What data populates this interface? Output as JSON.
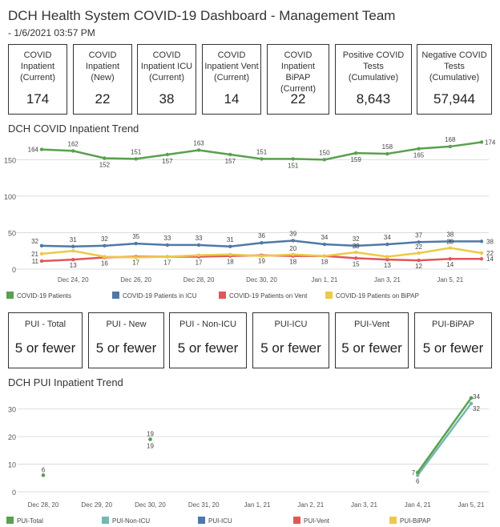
{
  "header": {
    "title": "DCH Health System COVID-19 Dashboard - Management Team",
    "subtitle": "- 1/6/2021 03:57 PM"
  },
  "kpis": [
    {
      "label": "COVID\nInpatient\n(Current)",
      "value": "174"
    },
    {
      "label": "COVID\nInpatient\n(New)",
      "value": "22"
    },
    {
      "label": "COVID\nInpatient ICU\n(Current)",
      "value": "38"
    },
    {
      "label": "COVID\nInpatient Vent\n(Current)",
      "value": "14"
    },
    {
      "label": "COVID\nInpatient BiPAP\n(Current)",
      "value": "22"
    },
    {
      "label": "Positive COVID\nTests\n(Cumulative)",
      "value": "8,643"
    },
    {
      "label": "Negative COVID\nTests\n(Cumulative)",
      "value": "57,944"
    }
  ],
  "pui_cards": [
    {
      "label": "PUI - Total",
      "value": "5 or fewer"
    },
    {
      "label": "PUI - New",
      "value": "5 or fewer"
    },
    {
      "label": "PUI - Non-ICU",
      "value": "5 or fewer"
    },
    {
      "label": "PUI-ICU",
      "value": "5 or fewer"
    },
    {
      "label": "PUI-Vent",
      "value": "5 or fewer"
    },
    {
      "label": "PUI-BiPAP",
      "value": "5 or fewer"
    }
  ],
  "colors": {
    "green": "#59a14f",
    "blue": "#4e79a7",
    "red": "#e15759",
    "yellow": "#edc948",
    "teal": "#76b7b2",
    "grid": "#dddddd",
    "axis_text": "#555555"
  },
  "chart_data": [
    {
      "type": "line",
      "title": "DCH COVID Inpatient Trend",
      "x": [
        "Dec 23",
        "Dec 24",
        "Dec 25",
        "Dec 26",
        "Dec 27",
        "Dec 28",
        "Dec 29",
        "Dec 30",
        "Dec 31",
        "Jan 1",
        "Jan 2",
        "Jan 3",
        "Jan 4",
        "Jan 5",
        "Jan 6"
      ],
      "x_tick_labels": [
        "Dec 24, 20",
        "Dec 26, 20",
        "Dec 28, 20",
        "Dec 30, 20",
        "Jan 1, 21",
        "Jan 3, 21",
        "Jan 5, 21"
      ],
      "y_ticks": [
        0,
        50,
        100,
        150
      ],
      "ylim": [
        0,
        180
      ],
      "grid": true,
      "legend_position": "bottom",
      "series": [
        {
          "name": "COVID-19 Patients",
          "color": "#59a14f",
          "values": [
            164,
            162,
            152,
            151,
            157,
            163,
            157,
            151,
            151,
            150,
            159,
            158,
            165,
            168,
            174
          ]
        },
        {
          "name": "COVID-19 Patients in ICU",
          "color": "#4e79a7",
          "values": [
            32,
            31,
            32,
            35,
            33,
            33,
            31,
            36,
            39,
            34,
            32,
            34,
            37,
            38,
            38
          ]
        },
        {
          "name": "COVID-19 Patients on Vent",
          "color": "#e15759",
          "values": [
            11,
            13,
            16,
            17,
            17,
            17,
            18,
            19,
            18,
            18,
            15,
            13,
            12,
            14,
            14
          ]
        },
        {
          "name": "COVID-19 Patients on BiPAP",
          "color": "#edc948",
          "values": [
            21,
            25,
            17,
            16,
            17,
            19,
            20,
            18,
            20,
            18,
            23,
            17,
            22,
            29,
            22
          ]
        }
      ],
      "data_labels": [
        {
          "series": 0,
          "text": [
            "164",
            "162",
            "152",
            "151",
            "157",
            "163",
            "157",
            "151",
            "151",
            "150",
            "159",
            "158",
            "165",
            "168",
            "174"
          ]
        },
        {
          "series": 1,
          "text": [
            "32",
            "31",
            "32",
            "35",
            "33",
            "33",
            "31",
            "36",
            "39",
            "34",
            "32",
            "34",
            "37",
            "38",
            "38"
          ]
        },
        {
          "series": 2,
          "text": [
            "11",
            "13",
            "16",
            "17",
            "17",
            "17",
            "18",
            "19",
            "18",
            "18",
            "15",
            "13",
            "12",
            "14",
            "14"
          ]
        },
        {
          "series": 3,
          "text": [
            "21",
            "",
            "",
            "",
            "",
            "",
            "",
            "",
            "20",
            "",
            "23",
            "",
            "22",
            "29",
            "22"
          ]
        }
      ]
    },
    {
      "type": "line",
      "title": "DCH PUI Inpatient Trend",
      "x": [
        "Dec 28, 20",
        "Dec 29, 20",
        "Dec 30, 20",
        "Dec 31, 20",
        "Jan 1, 21",
        "Jan 2, 21",
        "Jan 3, 21",
        "Jan 4, 21",
        "Jan 5, 21"
      ],
      "x_tick_labels": [
        "Dec 28, 20",
        "Dec 29, 20",
        "Dec 30, 20",
        "Dec 31, 20",
        "Jan 1, 21",
        "Jan 2, 21",
        "Jan 3, 21",
        "Jan 4, 21",
        "Jan 5, 21"
      ],
      "y_ticks": [
        0,
        10,
        20,
        30
      ],
      "ylim": [
        0,
        36
      ],
      "grid": true,
      "legend_position": "bottom",
      "series": [
        {
          "name": "PUI-Total",
          "color": "#59a14f",
          "values": [
            6,
            null,
            19,
            null,
            null,
            null,
            null,
            7,
            34
          ]
        },
        {
          "name": "PUI-Non-ICU",
          "color": "#76b7b2",
          "values": [
            null,
            null,
            19,
            null,
            null,
            null,
            null,
            6,
            32
          ]
        },
        {
          "name": "PUI-ICU",
          "color": "#4e79a7",
          "values": [
            null,
            null,
            null,
            null,
            null,
            null,
            null,
            null,
            null
          ]
        },
        {
          "name": "PUI-Vent",
          "color": "#e15759",
          "values": [
            null,
            null,
            null,
            null,
            null,
            null,
            null,
            null,
            null
          ]
        },
        {
          "name": "PUI-BiPAP",
          "color": "#edc948",
          "values": [
            null,
            null,
            null,
            null,
            null,
            null,
            null,
            null,
            null
          ]
        }
      ]
    }
  ]
}
